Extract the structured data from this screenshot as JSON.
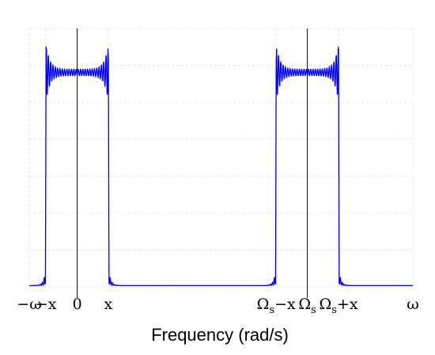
{
  "chart_data": {
    "type": "line",
    "title": "",
    "xlabel": "Frequency (rad/s)",
    "ylabel": "",
    "grid": true,
    "xlim": [
      -1,
      7
    ],
    "series": [
      {
        "color": "#0000ff",
        "bands": [
          {
            "center": 0,
            "half_width": 0.65
          },
          {
            "center": 4.8,
            "half_width": 0.65
          }
        ],
        "passband_level": 0.83,
        "peak_level": 0.93,
        "floor_level": 0.0
      }
    ],
    "x_ticks": [
      {
        "value": -1,
        "main": "−ω",
        "sub": ""
      },
      {
        "value": -0.65,
        "main": "−x",
        "sub": ""
      },
      {
        "value": 0,
        "main": "0",
        "sub": ""
      },
      {
        "value": 0.65,
        "main": "x",
        "sub": ""
      },
      {
        "value": 4.15,
        "main": "Ω",
        "sub": "s",
        "tail": "−x"
      },
      {
        "value": 4.8,
        "main": "Ω",
        "sub": "s",
        "tail": ""
      },
      {
        "value": 5.45,
        "main": "Ω",
        "sub": "s",
        "tail": "+x"
      },
      {
        "value": 7,
        "main": "ω",
        "sub": ""
      }
    ],
    "vertical_lines_at": [
      0,
      4.8
    ]
  }
}
